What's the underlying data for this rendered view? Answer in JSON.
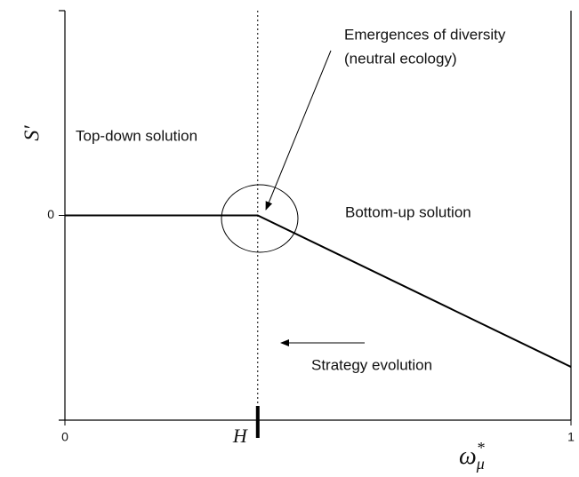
{
  "chart_data": {
    "type": "line",
    "x": [
      0,
      0.381,
      1
    ],
    "values": [
      0,
      0,
      -0.74
    ],
    "color": "#000000",
    "xlim": [
      0,
      1
    ],
    "xticks": [
      0,
      1
    ],
    "ylim": [
      -1,
      1
    ],
    "yticks": [
      0
    ],
    "ylabel": "S′",
    "xlabel": {
      "base": "ω",
      "sup": "*",
      "sub": "μ"
    },
    "vline": {
      "value": 0.381,
      "label": "H"
    },
    "annotations": [
      "Emergences of diversity",
      "(neutral ecology)",
      "Top-down solution",
      "Bottom-up solution",
      "Strategy evolution"
    ]
  }
}
